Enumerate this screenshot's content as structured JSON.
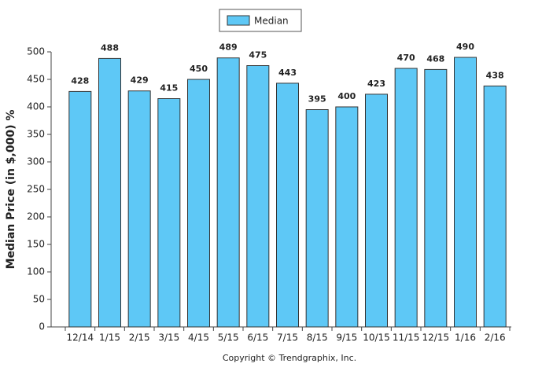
{
  "chart_data": {
    "type": "bar",
    "y_label": "Median Price (in $,000) %",
    "footer": "Copyright © Trendgraphix, Inc.",
    "categories": [
      "12/14",
      "1/15",
      "2/15",
      "3/15",
      "4/15",
      "5/15",
      "6/15",
      "7/15",
      "8/15",
      "9/15",
      "10/15",
      "11/15",
      "12/15",
      "1/16",
      "2/16"
    ],
    "series": [
      {
        "name": "Median",
        "color": "#5ec8f6",
        "values": [
          428,
          488,
          429,
          415,
          450,
          489,
          475,
          443,
          395,
          400,
          423,
          470,
          468,
          490,
          438
        ]
      }
    ],
    "ylim": [
      0,
      500
    ],
    "yticks": [
      0,
      50,
      100,
      150,
      200,
      250,
      300,
      350,
      400,
      450,
      500
    ],
    "legend": "top",
    "grid": false
  }
}
